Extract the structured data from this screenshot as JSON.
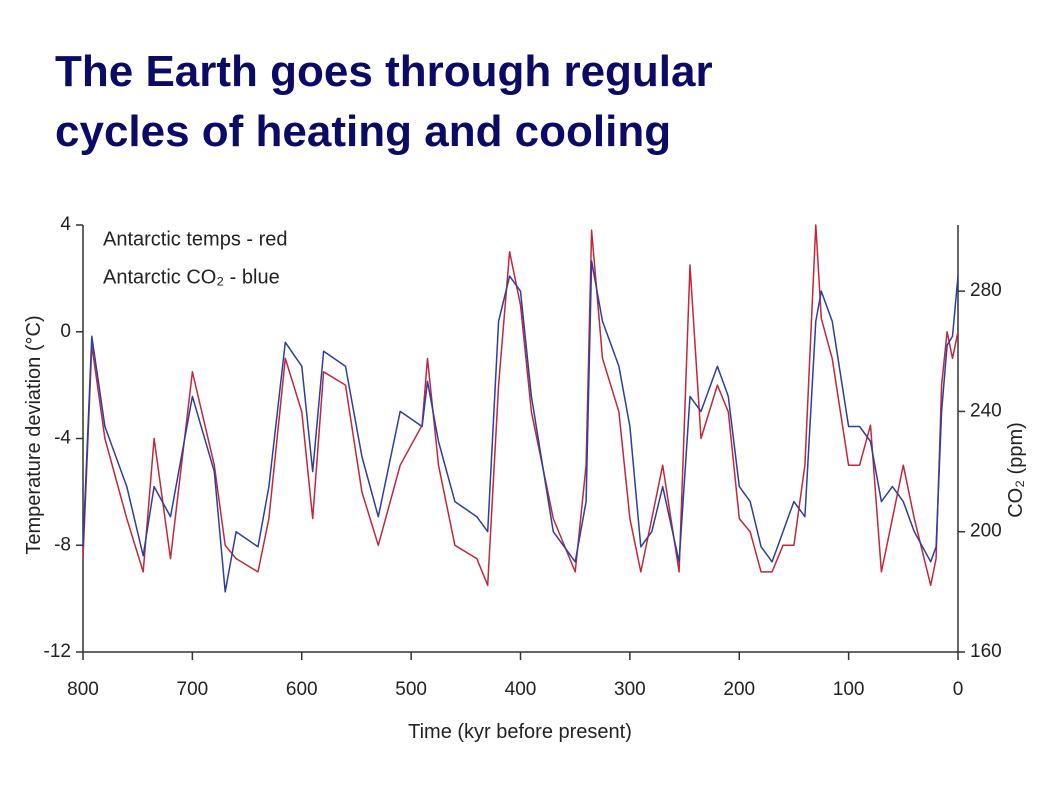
{
  "title_lines": [
    "The Earth goes through regular",
    "cycles of heating and cooling"
  ],
  "chart_data": {
    "type": "line",
    "xlabel": "Time (kyr before present)",
    "ylabel": "Temperature deviation (°C)",
    "y2label": "CO₂ (ppm)",
    "legend_lines": [
      "Antarctic temps  -  red",
      "Antarctic CO₂  -  blue"
    ],
    "x": [
      800,
      792,
      780,
      760,
      745,
      735,
      720,
      700,
      680,
      670,
      660,
      640,
      630,
      615,
      600,
      590,
      580,
      560,
      545,
      530,
      510,
      490,
      485,
      475,
      460,
      440,
      430,
      420,
      410,
      400,
      390,
      370,
      350,
      340,
      335,
      325,
      310,
      300,
      290,
      280,
      270,
      255,
      245,
      235,
      220,
      210,
      200,
      190,
      180,
      170,
      160,
      150,
      140,
      130,
      125,
      115,
      100,
      90,
      80,
      70,
      60,
      50,
      40,
      25,
      20,
      15,
      10,
      5,
      0
    ],
    "series": [
      {
        "name": "Antarctic temps",
        "color": "#c0283c",
        "axis": "y",
        "values": [
          -8.5,
          -0.5,
          -4,
          -7,
          -9,
          -4,
          -8.5,
          -1.5,
          -5,
          -8,
          -8.5,
          -9,
          -7,
          -1,
          -3,
          -7,
          -1.5,
          -2,
          -6,
          -8,
          -5,
          -3.5,
          -1,
          -5,
          -8,
          -8.5,
          -9.5,
          -2,
          3,
          1,
          -3,
          -7,
          -9,
          -5,
          3.8,
          -1,
          -3,
          -7,
          -9,
          -7,
          -5,
          -9,
          2.5,
          -4,
          -2,
          -3,
          -7,
          -7.5,
          -9,
          -9,
          -8,
          -8,
          -5,
          4,
          0.5,
          -1,
          -5,
          -5,
          -3.5,
          -9,
          -7,
          -5,
          -7,
          -9.5,
          -8.5,
          -2,
          0,
          -1,
          0
        ]
      },
      {
        "name": "Antarctic CO₂",
        "color": "#2b3f9e",
        "axis": "y2",
        "values": [
          195,
          265,
          235,
          215,
          192,
          215,
          205,
          245,
          220,
          180,
          200,
          195,
          215,
          263,
          255,
          220,
          260,
          255,
          225,
          205,
          240,
          235,
          250,
          230,
          210,
          205,
          200,
          270,
          285,
          280,
          245,
          200,
          190,
          210,
          290,
          270,
          255,
          235,
          195,
          200,
          215,
          190,
          245,
          240,
          255,
          245,
          215,
          210,
          195,
          190,
          200,
          210,
          205,
          270,
          280,
          270,
          235,
          235,
          230,
          210,
          215,
          210,
          200,
          190,
          195,
          240,
          262,
          265,
          285
        ]
      }
    ],
    "xlim": [
      800,
      0
    ],
    "xticks": [
      800,
      700,
      600,
      500,
      400,
      300,
      200,
      100,
      0
    ],
    "ylim": [
      -12,
      4
    ],
    "yticks": [
      -12,
      -8,
      -4,
      0,
      4
    ],
    "y2lim": [
      160,
      302
    ],
    "y2ticks": [
      160,
      200,
      240,
      280
    ]
  }
}
